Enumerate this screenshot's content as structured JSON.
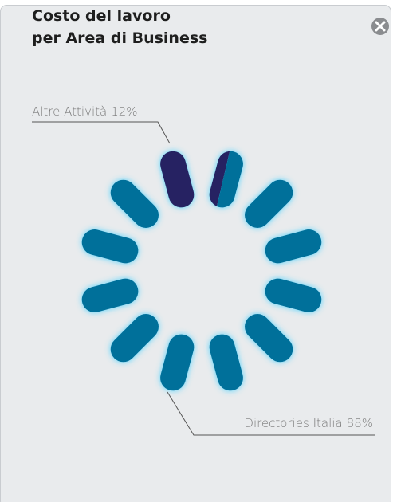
{
  "chart_data": {
    "type": "pie",
    "title": [
      "Costo del lavoro",
      "per Area di Business"
    ],
    "categories": [
      "Altre Attività",
      "Directories Italia"
    ],
    "values": [
      12,
      88
    ],
    "value_labels": [
      "12%",
      "88%"
    ],
    "colors": [
      "#262262",
      "#00709a"
    ]
  }
}
